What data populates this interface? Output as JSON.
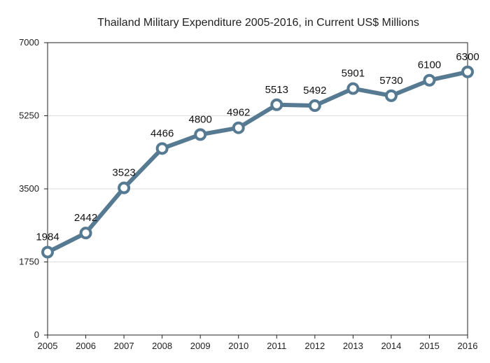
{
  "chart_data": {
    "type": "line",
    "title": "Thailand Military Expenditure 2005-2016, in Current US$ Millions",
    "xlabel": "",
    "ylabel": "",
    "x": [
      "2005",
      "2006",
      "2007",
      "2008",
      "2009",
      "2010",
      "2011",
      "2012",
      "2013",
      "2014",
      "2015",
      "2016"
    ],
    "series": [
      {
        "values": [
          1984,
          2442,
          3523,
          4466,
          4800,
          4962,
          5513,
          5492,
          5901,
          5730,
          6100,
          6300
        ]
      }
    ],
    "ylim": [
      0,
      7000
    ],
    "yticks": [
      "0",
      "1750",
      "3500",
      "5250",
      "7000"
    ],
    "grid": "horizontal",
    "legend": "none",
    "colors": {
      "line": "#567a92",
      "marker_fill": "#ffffff",
      "grid": "#dddddd",
      "axis": "#222222"
    }
  }
}
